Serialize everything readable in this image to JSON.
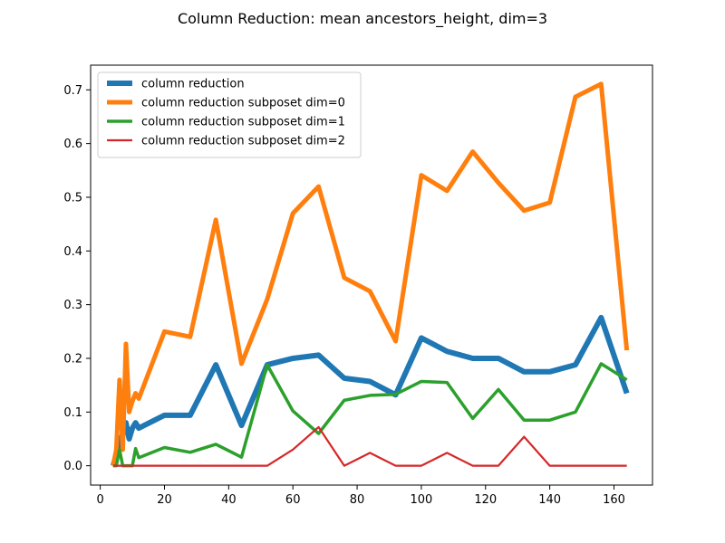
{
  "chart_data": {
    "type": "line",
    "title": "Column Reduction: mean ancestors_height, dim=3",
    "xlabel": "",
    "ylabel": "",
    "xlim": [
      -3,
      172
    ],
    "ylim": [
      -0.036,
      0.746
    ],
    "xticks": [
      0,
      20,
      40,
      60,
      80,
      100,
      120,
      140,
      160
    ],
    "xtick_labels": [
      "0",
      "20",
      "40",
      "60",
      "80",
      "100",
      "120",
      "140",
      "160"
    ],
    "yticks": [
      0.0,
      0.1,
      0.2,
      0.3,
      0.4,
      0.5,
      0.6,
      0.7
    ],
    "ytick_labels": [
      "0.0",
      "0.1",
      "0.2",
      "0.3",
      "0.4",
      "0.5",
      "0.6",
      "0.7"
    ],
    "grid": false,
    "legend_position": "upper-left",
    "series": [
      {
        "name": "column reduction",
        "color": "#1f77b4",
        "x": [
          4,
          5,
          6,
          7,
          8,
          9,
          10,
          11,
          12,
          20,
          28,
          36,
          44,
          52,
          60,
          68,
          76,
          84,
          92,
          100,
          108,
          116,
          124,
          132,
          140,
          148,
          156,
          164
        ],
        "y": [
          0.0,
          0.02,
          0.04,
          0.06,
          0.08,
          0.05,
          0.07,
          0.08,
          0.07,
          0.094,
          0.094,
          0.188,
          0.075,
          0.188,
          0.2,
          0.206,
          0.163,
          0.157,
          0.132,
          0.238,
          0.213,
          0.2,
          0.2,
          0.175,
          0.175,
          0.188,
          0.276,
          0.135
        ]
      },
      {
        "name": "column reduction subposet dim=0",
        "color": "#ff7f0e",
        "x": [
          4,
          5,
          6,
          7,
          8,
          9,
          10,
          11,
          12,
          20,
          28,
          36,
          44,
          52,
          60,
          68,
          76,
          84,
          92,
          100,
          108,
          116,
          124,
          132,
          140,
          148,
          156,
          164
        ],
        "y": [
          0.0,
          0.03,
          0.16,
          0.03,
          0.227,
          0.1,
          0.12,
          0.135,
          0.125,
          0.25,
          0.24,
          0.458,
          0.19,
          0.31,
          0.47,
          0.52,
          0.35,
          0.325,
          0.232,
          0.541,
          0.512,
          0.585,
          0.527,
          0.475,
          0.49,
          0.687,
          0.711,
          0.215
        ]
      },
      {
        "name": "column reduction subposet dim=1",
        "color": "#2ca02c",
        "x": [
          4,
          5,
          6,
          7,
          8,
          9,
          10,
          11,
          12,
          20,
          28,
          36,
          44,
          52,
          60,
          68,
          76,
          84,
          92,
          100,
          108,
          116,
          124,
          132,
          140,
          148,
          156,
          164
        ],
        "y": [
          0.0,
          0.0,
          0.03,
          0.0,
          0.0,
          0.0,
          0.0,
          0.032,
          0.015,
          0.034,
          0.025,
          0.04,
          0.016,
          0.188,
          0.102,
          0.06,
          0.122,
          0.131,
          0.133,
          0.157,
          0.155,
          0.088,
          0.142,
          0.085,
          0.085,
          0.1,
          0.19,
          0.16
        ]
      },
      {
        "name": "column reduction subposet dim=2",
        "color": "#d62728",
        "x": [
          4,
          5,
          6,
          7,
          8,
          9,
          10,
          11,
          12,
          20,
          28,
          36,
          44,
          52,
          60,
          68,
          76,
          84,
          92,
          100,
          108,
          116,
          124,
          132,
          140,
          148,
          156,
          164
        ],
        "y": [
          0.0,
          0.0,
          0.0,
          0.0,
          0.0,
          0.0,
          0.0,
          0.0,
          0.0,
          0.0,
          0.0,
          0.0,
          0.0,
          0.0,
          0.03,
          0.072,
          0.0,
          0.024,
          0.0,
          0.0,
          0.024,
          0.0,
          0.0,
          0.054,
          0.0,
          0.0,
          0.0,
          0.0
        ]
      }
    ]
  }
}
